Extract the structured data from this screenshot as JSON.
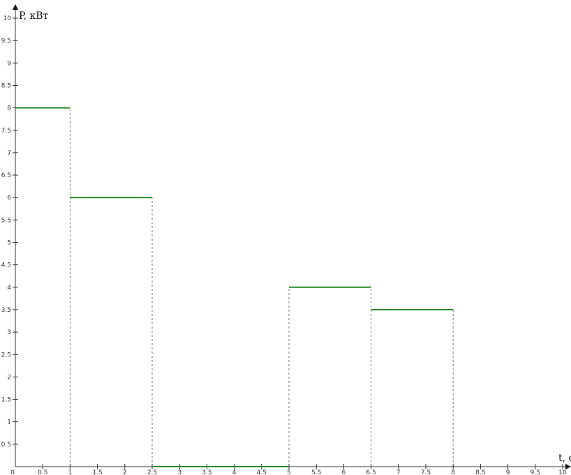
{
  "chart_data": {
    "type": "line",
    "title": "",
    "xlabel": "t, c",
    "ylabel": "P, кВт",
    "xlim": [
      0,
      10
    ],
    "ylim": [
      0,
      10
    ],
    "x_ticks": [
      "0",
      "0.5",
      "1",
      "1.5",
      "2",
      "2.5",
      "3",
      "3.5",
      "4",
      "4.5",
      "5",
      "5.5",
      "6",
      "6.5",
      "7",
      "7.5",
      "8",
      "8.5",
      "9",
      "9.5",
      "10"
    ],
    "y_ticks": [
      "0.5",
      "1",
      "1.5",
      "2",
      "2.5",
      "3",
      "3.5",
      "4",
      "4.5",
      "5",
      "5.5",
      "6",
      "6.5",
      "7",
      "7.5",
      "8",
      "8.5",
      "9",
      "9.5",
      "10"
    ],
    "grid": false,
    "line_color": "#2a8a2a",
    "segments": [
      {
        "x_start": 0,
        "x_end": 1,
        "y": 8
      },
      {
        "x_start": 1,
        "x_end": 2.5,
        "y": 6
      },
      {
        "x_start": 2.5,
        "x_end": 5,
        "y": 0
      },
      {
        "x_start": 5,
        "x_end": 6.5,
        "y": 4
      },
      {
        "x_start": 6.5,
        "x_end": 8,
        "y": 3.5
      }
    ]
  }
}
